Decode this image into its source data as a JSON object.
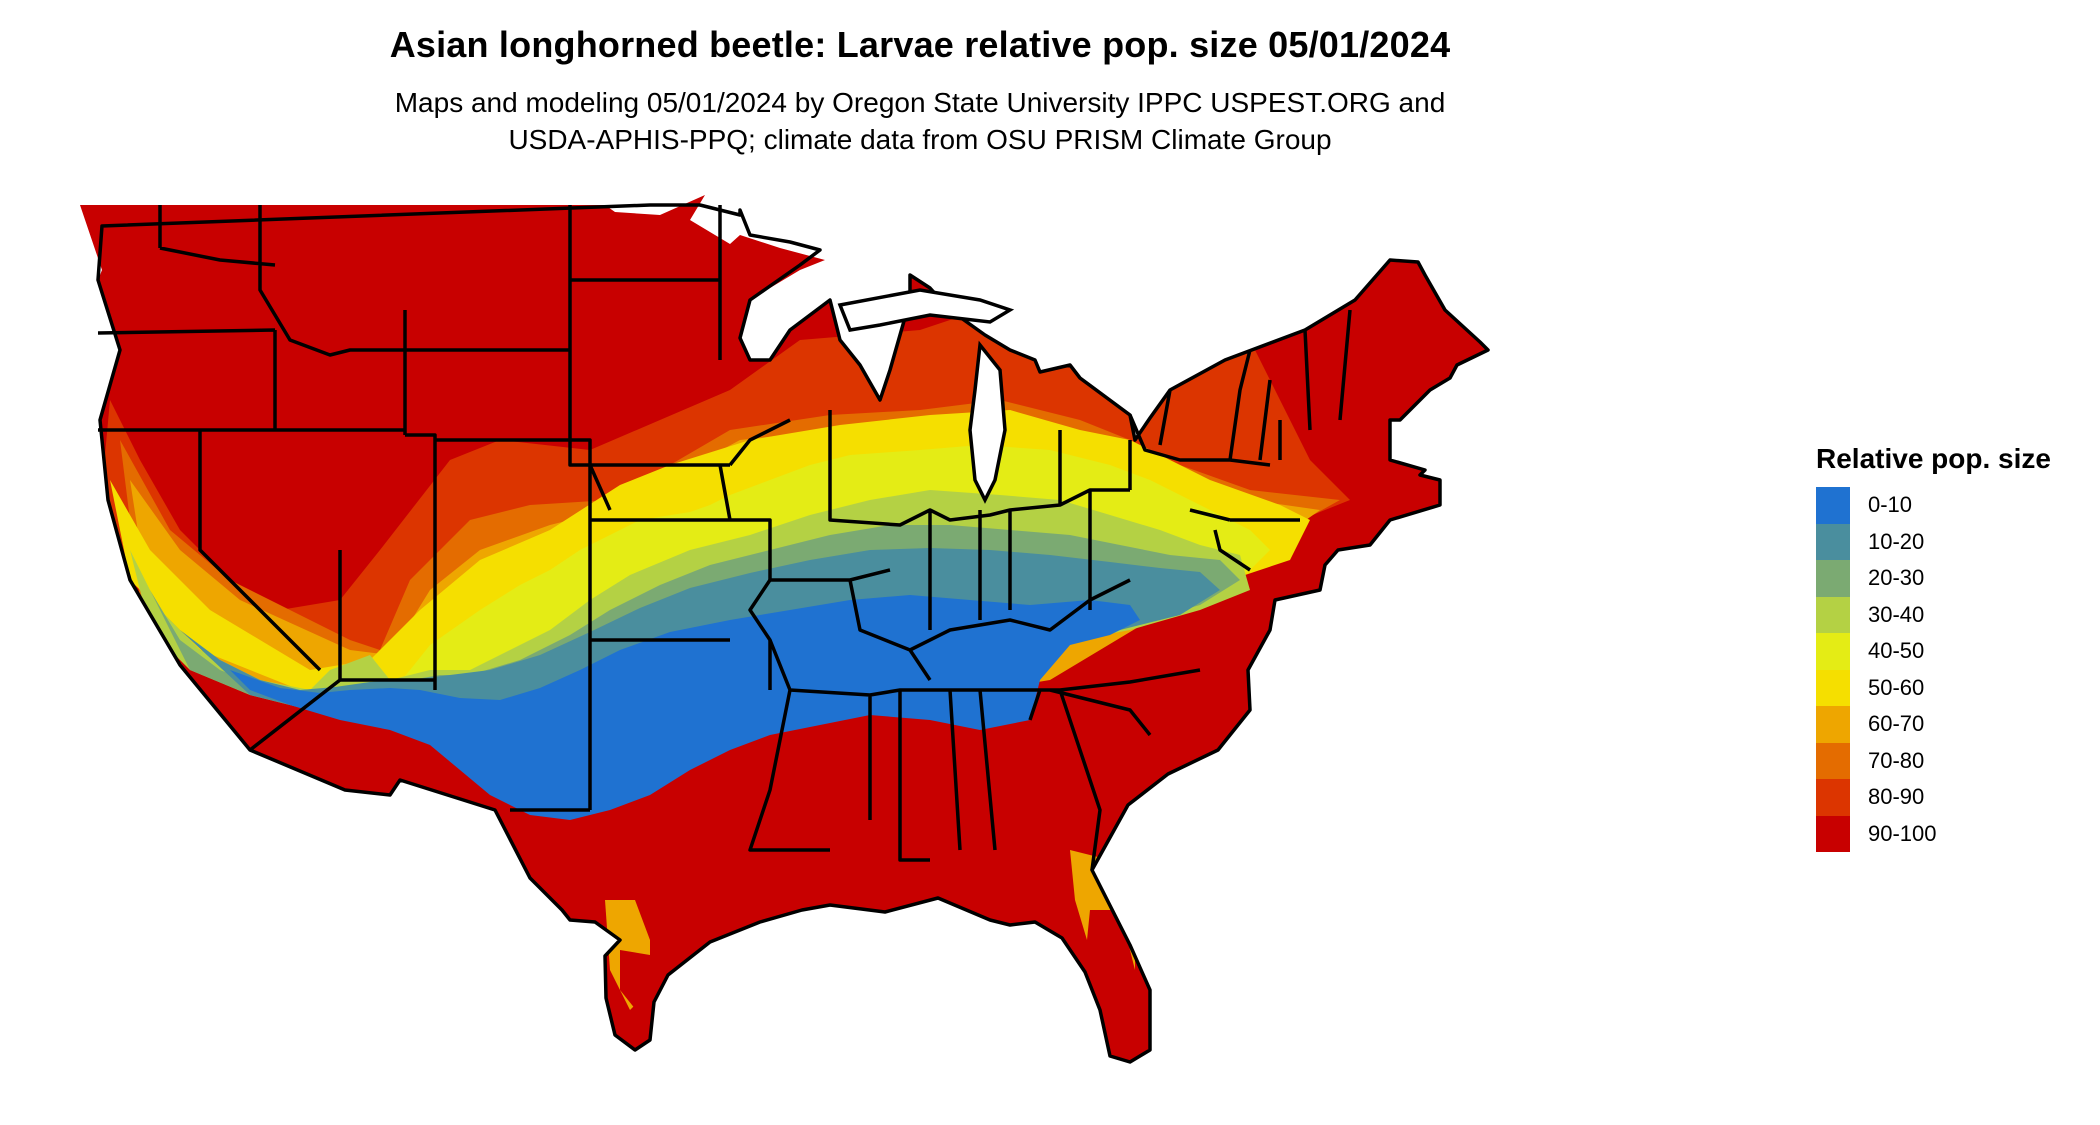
{
  "title": "Asian longhorned beetle: Larvae relative pop. size 05/01/2024",
  "subtitle": [
    "Maps and modeling 05/01/2024 by Oregon State University IPPC USPEST.ORG and",
    "USDA-APHIS-PPQ; climate data from OSU PRISM Climate Group"
  ],
  "legend": {
    "title": "Relative pop. size",
    "items": [
      {
        "label": "0-10",
        "color": "#1f72d1"
      },
      {
        "label": "10-20",
        "color": "#4a8e9e"
      },
      {
        "label": "20-30",
        "color": "#7baa72"
      },
      {
        "label": "30-40",
        "color": "#b4d144"
      },
      {
        "label": "40-50",
        "color": "#e4ec15"
      },
      {
        "label": "50-60",
        "color": "#f5df00"
      },
      {
        "label": "60-70",
        "color": "#eea600"
      },
      {
        "label": "70-80",
        "color": "#e46c00"
      },
      {
        "label": "80-90",
        "color": "#dc3500"
      },
      {
        "label": "90-100",
        "color": "#c80000"
      }
    ]
  }
}
